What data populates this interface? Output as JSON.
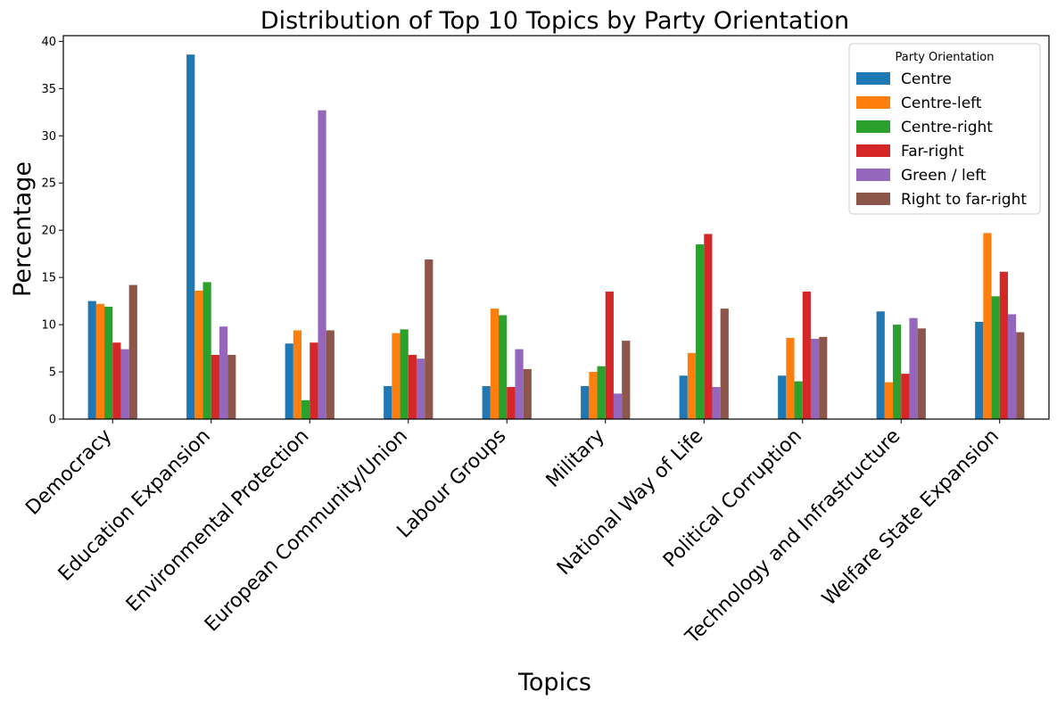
{
  "chart_data": {
    "type": "bar",
    "title": "Distribution of Top 10 Topics by Party Orientation",
    "xlabel": "Topics",
    "ylabel": "Percentage",
    "ylim": [
      0,
      40.6
    ],
    "yticks": [
      0,
      5,
      10,
      15,
      20,
      25,
      30,
      35,
      40
    ],
    "grid": false,
    "legend": {
      "title": "Party Orientation",
      "placement": "top-right"
    },
    "categories": [
      "Democracy",
      "Education Expansion",
      "Environmental Protection",
      "European Community/Union",
      "Labour Groups",
      "Military",
      "National Way of Life",
      "Political Corruption",
      "Technology and Infrastructure",
      "Welfare State Expansion"
    ],
    "series": [
      {
        "name": "Centre",
        "color": "#1f77b4",
        "values": [
          12.5,
          38.6,
          8.0,
          3.5,
          3.5,
          3.5,
          4.6,
          4.6,
          11.4,
          10.3
        ]
      },
      {
        "name": "Centre-left",
        "color": "#ff7f0e",
        "values": [
          12.2,
          13.6,
          9.4,
          9.1,
          11.7,
          5.0,
          7.0,
          8.6,
          3.9,
          19.7
        ]
      },
      {
        "name": "Centre-right",
        "color": "#2ca02c",
        "values": [
          11.9,
          14.5,
          2.0,
          9.5,
          11.0,
          5.6,
          18.5,
          4.0,
          10.0,
          13.0
        ]
      },
      {
        "name": "Far-right",
        "color": "#d62728",
        "values": [
          8.1,
          6.8,
          8.1,
          6.8,
          3.4,
          13.5,
          19.6,
          13.5,
          4.8,
          15.6
        ]
      },
      {
        "name": "Green / left",
        "color": "#9467bd",
        "values": [
          7.4,
          9.8,
          32.7,
          6.4,
          7.4,
          2.7,
          3.4,
          8.5,
          10.7,
          11.1
        ]
      },
      {
        "name": "Right to far-right",
        "color": "#8c564b",
        "values": [
          14.2,
          6.8,
          9.4,
          16.9,
          5.3,
          8.3,
          11.7,
          8.7,
          9.6,
          9.2
        ]
      }
    ]
  }
}
